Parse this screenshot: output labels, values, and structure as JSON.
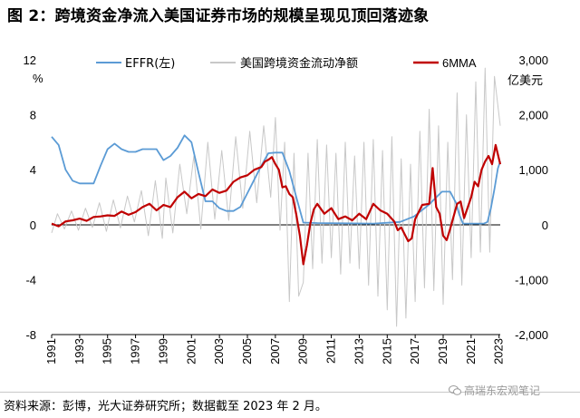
{
  "title": "图 2：跨境资金净流入美国证券市场的规模呈现见顶回落迹象",
  "source": "资料来源：彭博，光大证券研究所；数据截至 2023 年 2 月。",
  "watermark": "高瑞东宏观笔记",
  "colors": {
    "effr": "#5b9bd5",
    "gross": "#c8c8c8",
    "mma": "#c00000"
  },
  "chart_data": {
    "type": "line",
    "left_axis": {
      "unit": "%",
      "ylim": [
        -8,
        12
      ],
      "ticks": [
        "12",
        "8",
        "4",
        "0",
        "-4",
        "-8"
      ]
    },
    "right_axis": {
      "unit": "亿美元",
      "ylim": [
        -2000,
        3000
      ],
      "ticks": [
        "3,000",
        "2,000",
        "1,000",
        "0",
        "-1,000",
        "-2,000"
      ]
    },
    "x_axis": {
      "range": [
        "1991-01",
        "2023-02"
      ],
      "ticks": [
        "1991",
        "1993",
        "1995",
        "1997",
        "1999",
        "2001",
        "2003",
        "2005",
        "2007",
        "2009",
        "2011",
        "2013",
        "2015",
        "2017",
        "2019",
        "2021",
        "2023"
      ]
    },
    "legend": [
      "EFFR(左)",
      "美国跨境资金流动净额",
      "6MMA"
    ],
    "series": [
      {
        "name": "EFFR(左)",
        "axis": "left",
        "points": [
          [
            "1991-01",
            6.4
          ],
          [
            "1991-07",
            5.8
          ],
          [
            "1992-01",
            4.0
          ],
          [
            "1992-07",
            3.2
          ],
          [
            "1993-01",
            3.0
          ],
          [
            "1993-07",
            3.0
          ],
          [
            "1994-01",
            3.0
          ],
          [
            "1994-07",
            4.3
          ],
          [
            "1995-01",
            5.5
          ],
          [
            "1995-07",
            5.9
          ],
          [
            "1996-01",
            5.5
          ],
          [
            "1996-07",
            5.3
          ],
          [
            "1997-01",
            5.3
          ],
          [
            "1997-07",
            5.5
          ],
          [
            "1998-01",
            5.5
          ],
          [
            "1998-07",
            5.5
          ],
          [
            "1999-01",
            4.7
          ],
          [
            "1999-07",
            5.0
          ],
          [
            "2000-01",
            5.6
          ],
          [
            "2000-07",
            6.5
          ],
          [
            "2001-01",
            6.0
          ],
          [
            "2001-07",
            3.8
          ],
          [
            "2002-01",
            1.7
          ],
          [
            "2002-07",
            1.7
          ],
          [
            "2003-01",
            1.2
          ],
          [
            "2003-07",
            1.0
          ],
          [
            "2004-01",
            1.0
          ],
          [
            "2004-07",
            1.3
          ],
          [
            "2005-01",
            2.3
          ],
          [
            "2005-07",
            3.3
          ],
          [
            "2006-01",
            4.3
          ],
          [
            "2006-07",
            5.2
          ],
          [
            "2007-01",
            5.25
          ],
          [
            "2007-07",
            5.25
          ],
          [
            "2008-01",
            3.9
          ],
          [
            "2008-07",
            2.0
          ],
          [
            "2009-01",
            0.15
          ],
          [
            "2010-01",
            0.12
          ],
          [
            "2012-01",
            0.1
          ],
          [
            "2014-01",
            0.08
          ],
          [
            "2015-12",
            0.2
          ],
          [
            "2016-12",
            0.6
          ],
          [
            "2017-12",
            1.4
          ],
          [
            "2018-12",
            2.4
          ],
          [
            "2019-07",
            2.4
          ],
          [
            "2019-12",
            1.6
          ],
          [
            "2020-03",
            0.7
          ],
          [
            "2020-06",
            0.08
          ],
          [
            "2021-12",
            0.08
          ],
          [
            "2022-03",
            0.2
          ],
          [
            "2022-06",
            1.2
          ],
          [
            "2022-09",
            2.6
          ],
          [
            "2022-12",
            4.1
          ],
          [
            "2023-02",
            4.6
          ]
        ]
      },
      {
        "name": "6MMA",
        "axis": "right",
        "points": [
          [
            "1991-01",
            20
          ],
          [
            "1991-07",
            -30
          ],
          [
            "1992-01",
            60
          ],
          [
            "1992-07",
            80
          ],
          [
            "1993-01",
            110
          ],
          [
            "1993-07",
            70
          ],
          [
            "1994-01",
            140
          ],
          [
            "1994-07",
            150
          ],
          [
            "1995-01",
            170
          ],
          [
            "1995-07",
            160
          ],
          [
            "1996-01",
            240
          ],
          [
            "1996-07",
            180
          ],
          [
            "1997-01",
            230
          ],
          [
            "1997-07",
            320
          ],
          [
            "1998-01",
            380
          ],
          [
            "1998-07",
            260
          ],
          [
            "1999-01",
            360
          ],
          [
            "1999-07",
            320
          ],
          [
            "2000-01",
            500
          ],
          [
            "2000-07",
            600
          ],
          [
            "2001-01",
            480
          ],
          [
            "2001-07",
            560
          ],
          [
            "2002-01",
            520
          ],
          [
            "2002-07",
            640
          ],
          [
            "2003-01",
            580
          ],
          [
            "2003-07",
            620
          ],
          [
            "2004-01",
            780
          ],
          [
            "2004-07",
            860
          ],
          [
            "2005-01",
            900
          ],
          [
            "2005-07",
            1000
          ],
          [
            "2006-01",
            1050
          ],
          [
            "2006-04",
            1150
          ],
          [
            "2006-07",
            1180
          ],
          [
            "2006-10",
            1230
          ],
          [
            "2007-01",
            1100
          ],
          [
            "2007-04",
            1000
          ],
          [
            "2007-07",
            680
          ],
          [
            "2007-10",
            700
          ],
          [
            "2008-01",
            560
          ],
          [
            "2008-04",
            500
          ],
          [
            "2008-07",
            180
          ],
          [
            "2008-10",
            -200
          ],
          [
            "2009-01",
            -720
          ],
          [
            "2009-04",
            -380
          ],
          [
            "2009-07",
            20
          ],
          [
            "2009-10",
            280
          ],
          [
            "2010-01",
            380
          ],
          [
            "2010-07",
            200
          ],
          [
            "2011-01",
            300
          ],
          [
            "2011-07",
            100
          ],
          [
            "2012-01",
            150
          ],
          [
            "2012-07",
            80
          ],
          [
            "2013-01",
            200
          ],
          [
            "2013-07",
            100
          ],
          [
            "2014-01",
            380
          ],
          [
            "2014-07",
            260
          ],
          [
            "2015-01",
            200
          ],
          [
            "2015-07",
            60
          ],
          [
            "2015-10",
            -100
          ],
          [
            "2016-01",
            -50
          ],
          [
            "2016-07",
            -300
          ],
          [
            "2016-10",
            -250
          ],
          [
            "2017-01",
            100
          ],
          [
            "2017-07",
            360
          ],
          [
            "2018-01",
            380
          ],
          [
            "2018-04",
            1030
          ],
          [
            "2018-07",
            320
          ],
          [
            "2018-10",
            200
          ],
          [
            "2019-01",
            -200
          ],
          [
            "2019-04",
            -280
          ],
          [
            "2019-07",
            -80
          ],
          [
            "2020-01",
            380
          ],
          [
            "2020-04",
            420
          ],
          [
            "2020-07",
            120
          ],
          [
            "2021-01",
            500
          ],
          [
            "2021-04",
            780
          ],
          [
            "2021-07",
            700
          ],
          [
            "2021-10",
            1000
          ],
          [
            "2022-01",
            1150
          ],
          [
            "2022-04",
            1250
          ],
          [
            "2022-07",
            1100
          ],
          [
            "2022-10",
            1450
          ],
          [
            "2023-02",
            1100
          ]
        ]
      },
      {
        "name": "美国跨境资金流动净额",
        "axis": "right",
        "points": [
          [
            "1991-01",
            -150
          ],
          [
            "1991-06",
            200
          ],
          [
            "1991-12",
            -80
          ],
          [
            "1992-06",
            250
          ],
          [
            "1992-12",
            -100
          ],
          [
            "1993-06",
            300
          ],
          [
            "1993-12",
            -50
          ],
          [
            "1994-06",
            400
          ],
          [
            "1994-12",
            -120
          ],
          [
            "1995-06",
            450
          ],
          [
            "1995-12",
            -60
          ],
          [
            "1996-06",
            520
          ],
          [
            "1996-12",
            50
          ],
          [
            "1997-06",
            620
          ],
          [
            "1997-12",
            -200
          ],
          [
            "1998-06",
            800
          ],
          [
            "1998-12",
            -250
          ],
          [
            "1999-03",
            850
          ],
          [
            "1999-09",
            -150
          ],
          [
            "2000-03",
            1100
          ],
          [
            "2000-09",
            200
          ],
          [
            "2001-03",
            1250
          ],
          [
            "2001-09",
            -80
          ],
          [
            "2002-03",
            1500
          ],
          [
            "2002-09",
            100
          ],
          [
            "2003-03",
            1350
          ],
          [
            "2003-09",
            80
          ],
          [
            "2004-03",
            1600
          ],
          [
            "2004-09",
            300
          ],
          [
            "2005-03",
            1700
          ],
          [
            "2005-09",
            400
          ],
          [
            "2006-03",
            1800
          ],
          [
            "2006-09",
            500
          ],
          [
            "2007-01",
            1950
          ],
          [
            "2007-05",
            -100
          ],
          [
            "2007-09",
            1500
          ],
          [
            "2008-01",
            -1400
          ],
          [
            "2008-05",
            1300
          ],
          [
            "2008-09",
            -1300
          ],
          [
            "2009-01",
            -1050
          ],
          [
            "2009-05",
            1300
          ],
          [
            "2009-09",
            -800
          ],
          [
            "2010-01",
            1550
          ],
          [
            "2010-05",
            -700
          ],
          [
            "2010-09",
            1450
          ],
          [
            "2011-01",
            -600
          ],
          [
            "2011-05",
            1300
          ],
          [
            "2011-09",
            -900
          ],
          [
            "2012-01",
            1500
          ],
          [
            "2012-05",
            -700
          ],
          [
            "2012-09",
            1250
          ],
          [
            "2013-01",
            -800
          ],
          [
            "2013-05",
            1500
          ],
          [
            "2013-09",
            -1100
          ],
          [
            "2014-01",
            1550
          ],
          [
            "2014-05",
            -1300
          ],
          [
            "2014-09",
            1350
          ],
          [
            "2015-01",
            -1550
          ],
          [
            "2015-05",
            1600
          ],
          [
            "2015-09",
            -1850
          ],
          [
            "2016-01",
            1200
          ],
          [
            "2016-05",
            -1700
          ],
          [
            "2016-09",
            1100
          ],
          [
            "2017-01",
            -1400
          ],
          [
            "2017-05",
            1700
          ],
          [
            "2017-09",
            -1150
          ],
          [
            "2018-01",
            2100
          ],
          [
            "2018-05",
            -1200
          ],
          [
            "2018-09",
            1800
          ],
          [
            "2019-01",
            -1450
          ],
          [
            "2019-05",
            1500
          ],
          [
            "2019-09",
            -1000
          ],
          [
            "2020-01",
            2400
          ],
          [
            "2020-05",
            -1100
          ],
          [
            "2020-09",
            2000
          ],
          [
            "2021-01",
            -600
          ],
          [
            "2021-05",
            2600
          ],
          [
            "2021-09",
            -500
          ],
          [
            "2022-01",
            2850
          ],
          [
            "2022-05",
            -500
          ],
          [
            "2022-09",
            2700
          ],
          [
            "2023-02",
            1800
          ]
        ]
      }
    ]
  }
}
